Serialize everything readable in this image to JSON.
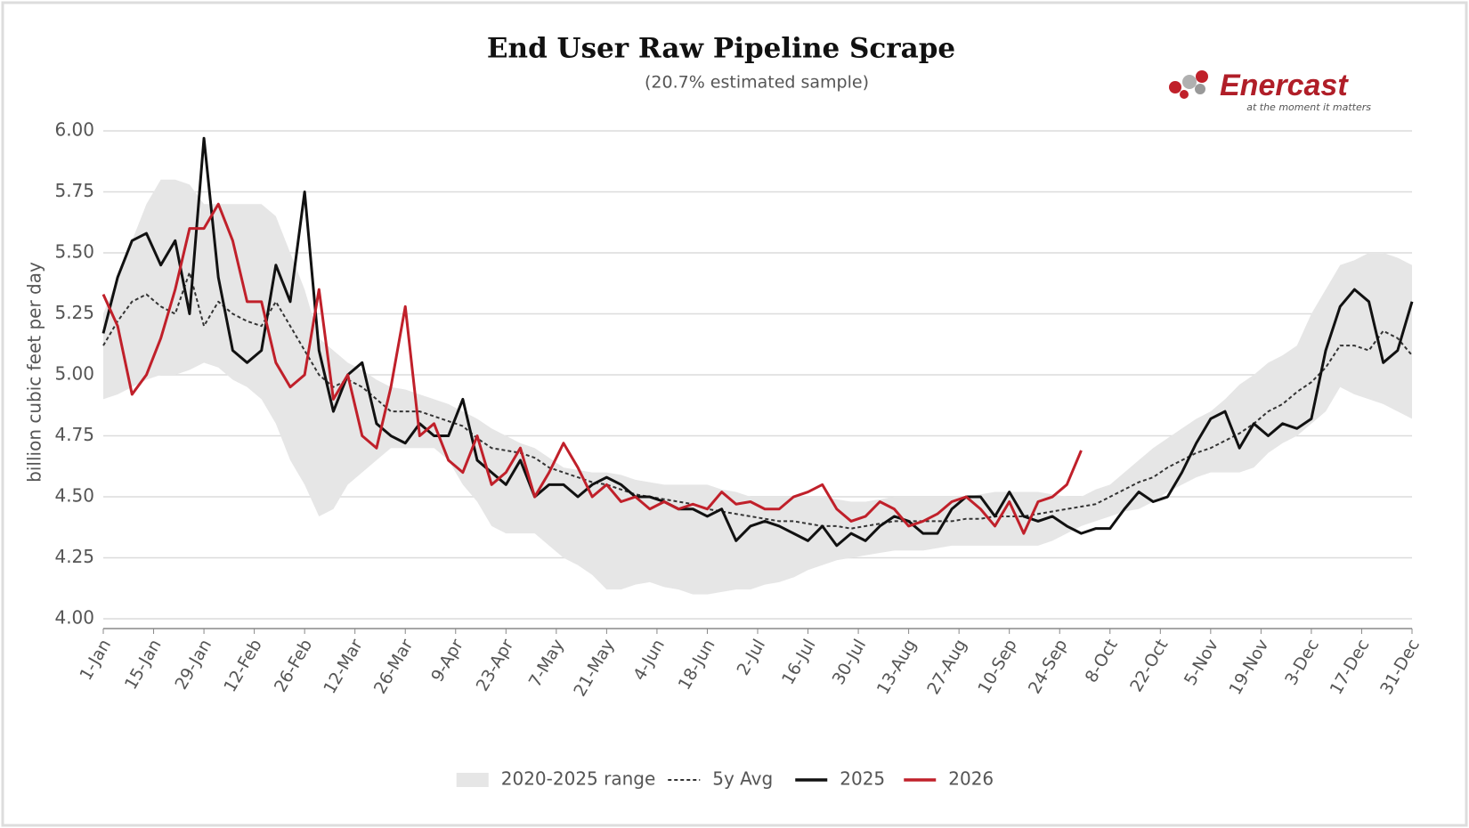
{
  "logo": {
    "name": "Enercast",
    "tagline": "at the moment it matters"
  },
  "chart_data": {
    "type": "line",
    "title": "End User Raw Pipeline Scrape",
    "subtitle": "(20.7% estimated sample)",
    "y_label": "billion cubic feet per day",
    "grid": true,
    "legend": "bottom",
    "xlim": [
      1,
      365
    ],
    "ylim": [
      3.96,
      6
    ],
    "yticks": [
      {
        "value": 4,
        "label": "4.00"
      },
      {
        "value": 4.25,
        "label": "4.25"
      },
      {
        "value": 4.5,
        "label": "4.50"
      },
      {
        "value": 4.75,
        "label": "4.75"
      },
      {
        "value": 5,
        "label": "5.00"
      },
      {
        "value": 5.25,
        "label": "5.25"
      },
      {
        "value": 5.5,
        "label": "5.50"
      },
      {
        "value": 5.75,
        "label": "5.75"
      },
      {
        "value": 6,
        "label": "6.00"
      }
    ],
    "xticks": [
      {
        "value": 1,
        "label": "1-Jan"
      },
      {
        "value": 15,
        "label": "15-Jan"
      },
      {
        "value": 29,
        "label": "29-Jan"
      },
      {
        "value": 43,
        "label": "12-Feb"
      },
      {
        "value": 57,
        "label": "26-Feb"
      },
      {
        "value": 71,
        "label": "12-Mar"
      },
      {
        "value": 85,
        "label": "26-Mar"
      },
      {
        "value": 99,
        "label": "9-Apr"
      },
      {
        "value": 113,
        "label": "23-Apr"
      },
      {
        "value": 127,
        "label": "7-May"
      },
      {
        "value": 141,
        "label": "21-May"
      },
      {
        "value": 155,
        "label": "4-Jun"
      },
      {
        "value": 169,
        "label": "18-Jun"
      },
      {
        "value": 183,
        "label": "2-Jul"
      },
      {
        "value": 197,
        "label": "16-Jul"
      },
      {
        "value": 211,
        "label": "30-Jul"
      },
      {
        "value": 225,
        "label": "13-Aug"
      },
      {
        "value": 239,
        "label": "27-Aug"
      },
      {
        "value": 253,
        "label": "10-Sep"
      },
      {
        "value": 267,
        "label": "24-Sep"
      },
      {
        "value": 281,
        "label": "8-Oct"
      },
      {
        "value": 295,
        "label": "22-Oct"
      },
      {
        "value": 309,
        "label": "5-Nov"
      },
      {
        "value": 323,
        "label": "19-Nov"
      },
      {
        "value": 337,
        "label": "3-Dec"
      },
      {
        "value": 351,
        "label": "17-Dec"
      },
      {
        "value": 365,
        "label": "31-Dec"
      }
    ],
    "x": [
      1,
      5,
      9,
      13,
      17,
      21,
      25,
      29,
      33,
      37,
      41,
      45,
      49,
      53,
      57,
      61,
      65,
      69,
      73,
      77,
      81,
      85,
      89,
      93,
      97,
      101,
      105,
      109,
      113,
      117,
      121,
      125,
      129,
      133,
      137,
      141,
      145,
      149,
      153,
      157,
      161,
      165,
      169,
      173,
      177,
      181,
      185,
      189,
      193,
      197,
      201,
      205,
      209,
      213,
      217,
      221,
      225,
      229,
      233,
      237,
      241,
      245,
      249,
      253,
      257,
      261,
      265,
      269,
      273,
      277,
      281,
      285,
      289,
      293,
      297,
      301,
      305,
      309,
      313,
      317,
      321,
      325,
      329,
      333,
      337,
      341,
      345,
      349,
      353,
      357,
      361,
      365
    ],
    "series": [
      {
        "name": "2020-2025 range",
        "style": "band",
        "color": "#e6e6e6",
        "high": [
          5.25,
          5.4,
          5.55,
          5.7,
          5.8,
          5.8,
          5.78,
          5.7,
          5.7,
          5.7,
          5.7,
          5.7,
          5.65,
          5.5,
          5.35,
          5.15,
          5.1,
          5.05,
          5.02,
          4.98,
          4.95,
          4.94,
          4.92,
          4.9,
          4.88,
          4.85,
          4.82,
          4.78,
          4.75,
          4.72,
          4.7,
          4.66,
          4.62,
          4.61,
          4.6,
          4.6,
          4.59,
          4.57,
          4.56,
          4.55,
          4.55,
          4.55,
          4.55,
          4.53,
          4.52,
          4.5,
          4.5,
          4.5,
          4.5,
          4.5,
          4.5,
          4.49,
          4.48,
          4.48,
          4.49,
          4.5,
          4.5,
          4.5,
          4.5,
          4.5,
          4.5,
          4.51,
          4.52,
          4.52,
          4.52,
          4.52,
          4.51,
          4.5,
          4.5,
          4.53,
          4.55,
          4.6,
          4.65,
          4.7,
          4.74,
          4.78,
          4.82,
          4.85,
          4.9,
          4.96,
          5.0,
          5.05,
          5.08,
          5.12,
          5.25,
          5.35,
          5.45,
          5.47,
          5.5,
          5.5,
          5.48,
          5.45
        ],
        "low": [
          4.9,
          4.92,
          4.95,
          4.98,
          5.0,
          5.0,
          5.02,
          5.05,
          5.03,
          4.98,
          4.95,
          4.9,
          4.8,
          4.65,
          4.55,
          4.42,
          4.45,
          4.55,
          4.6,
          4.65,
          4.7,
          4.7,
          4.7,
          4.7,
          4.65,
          4.55,
          4.48,
          4.38,
          4.35,
          4.35,
          4.35,
          4.3,
          4.25,
          4.22,
          4.18,
          4.12,
          4.12,
          4.14,
          4.15,
          4.13,
          4.12,
          4.1,
          4.1,
          4.11,
          4.12,
          4.12,
          4.14,
          4.15,
          4.17,
          4.2,
          4.22,
          4.24,
          4.25,
          4.26,
          4.27,
          4.28,
          4.28,
          4.28,
          4.29,
          4.3,
          4.3,
          4.3,
          4.3,
          4.3,
          4.3,
          4.3,
          4.32,
          4.35,
          4.38,
          4.4,
          4.42,
          4.44,
          4.45,
          4.48,
          4.52,
          4.55,
          4.58,
          4.6,
          4.6,
          4.6,
          4.62,
          4.68,
          4.72,
          4.75,
          4.8,
          4.85,
          4.95,
          4.92,
          4.9,
          4.88,
          4.85,
          4.82
        ]
      },
      {
        "name": "5y Avg",
        "style": "dotted",
        "color": "#333333",
        "values": [
          5.12,
          5.22,
          5.3,
          5.33,
          5.28,
          5.25,
          5.42,
          5.2,
          5.3,
          5.25,
          5.22,
          5.2,
          5.3,
          5.2,
          5.1,
          5.0,
          4.95,
          4.98,
          4.95,
          4.9,
          4.85,
          4.85,
          4.85,
          4.83,
          4.81,
          4.79,
          4.74,
          4.7,
          4.69,
          4.68,
          4.66,
          4.62,
          4.6,
          4.58,
          4.56,
          4.55,
          4.53,
          4.51,
          4.5,
          4.49,
          4.48,
          4.47,
          4.45,
          4.44,
          4.43,
          4.42,
          4.41,
          4.4,
          4.4,
          4.39,
          4.38,
          4.38,
          4.37,
          4.38,
          4.39,
          4.4,
          4.4,
          4.4,
          4.4,
          4.4,
          4.41,
          4.41,
          4.42,
          4.42,
          4.42,
          4.43,
          4.44,
          4.45,
          4.46,
          4.47,
          4.5,
          4.53,
          4.56,
          4.58,
          4.62,
          4.65,
          4.68,
          4.7,
          4.73,
          4.76,
          4.8,
          4.85,
          4.88,
          4.93,
          4.97,
          5.03,
          5.12,
          5.12,
          5.1,
          5.18,
          5.15,
          5.08
        ]
      },
      {
        "name": "2025",
        "style": "solid",
        "color": "#111111",
        "values": [
          5.17,
          5.4,
          5.55,
          5.58,
          5.45,
          5.55,
          5.25,
          5.97,
          5.4,
          5.1,
          5.05,
          5.1,
          5.45,
          5.3,
          5.75,
          5.1,
          4.85,
          5.0,
          5.05,
          4.8,
          4.75,
          4.72,
          4.8,
          4.75,
          4.75,
          4.9,
          4.65,
          4.6,
          4.55,
          4.65,
          4.5,
          4.55,
          4.55,
          4.5,
          4.55,
          4.58,
          4.55,
          4.5,
          4.5,
          4.48,
          4.45,
          4.45,
          4.42,
          4.45,
          4.32,
          4.38,
          4.4,
          4.38,
          4.35,
          4.32,
          4.38,
          4.3,
          4.35,
          4.32,
          4.38,
          4.42,
          4.4,
          4.35,
          4.35,
          4.45,
          4.5,
          4.5,
          4.42,
          4.52,
          4.42,
          4.4,
          4.42,
          4.38,
          4.35,
          4.37,
          4.37,
          4.45,
          4.52,
          4.48,
          4.5,
          4.6,
          4.72,
          4.82,
          4.85,
          4.7,
          4.8,
          4.75,
          4.8,
          4.78,
          4.82,
          5.1,
          5.28,
          5.35,
          5.3,
          5.05,
          5.1,
          5.3
        ]
      },
      {
        "name": "2026",
        "style": "solid",
        "color": "#c0202a",
        "values": [
          5.33,
          5.2,
          4.92,
          5.0,
          5.15,
          5.35,
          5.6,
          5.6,
          5.7,
          5.55,
          5.3,
          5.3,
          5.05,
          4.95,
          5.0,
          5.35,
          4.9,
          5.0,
          4.75,
          4.7,
          4.95,
          5.28,
          4.75,
          4.8,
          4.65,
          4.6,
          4.75,
          4.55,
          4.6,
          4.7,
          4.5,
          4.6,
          4.72,
          4.62,
          4.5,
          4.55,
          4.48,
          4.5,
          4.45,
          4.48,
          4.45,
          4.47,
          4.45,
          4.52,
          4.47,
          4.48,
          4.45,
          4.45,
          4.5,
          4.52,
          4.55,
          4.45,
          4.4,
          4.42,
          4.48,
          4.45,
          4.38,
          4.4,
          4.43,
          4.48,
          4.5,
          4.45,
          4.38,
          4.48,
          4.35,
          4.48,
          4.5,
          4.55,
          4.69,
          null,
          null,
          null,
          null,
          null,
          null,
          null,
          null,
          null,
          null,
          null,
          null,
          null,
          null,
          null,
          null,
          null,
          null,
          null,
          null,
          null,
          null,
          null
        ]
      }
    ]
  }
}
